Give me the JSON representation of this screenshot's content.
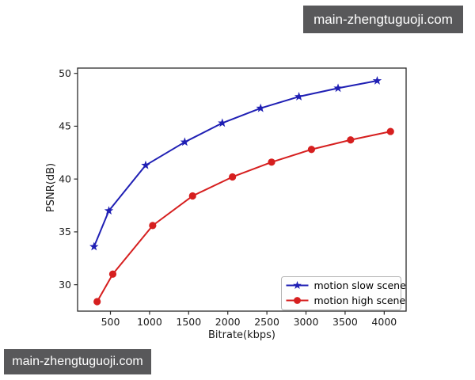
{
  "watermarks": {
    "top_right": "main-zhengtuguoji.com",
    "bottom_left": "main-zhengtuguoji.com"
  },
  "colors": {
    "watermark_bg": "#58585a",
    "watermark_text": "#ffffff",
    "axis": "#2b2b2b",
    "tick_text": "#1a1a1a",
    "legend_border": "#b4b4b4",
    "legend_bg": "#fefefe"
  },
  "chart_data": {
    "type": "line",
    "title": "",
    "xlabel": "Bitrate(kbps)",
    "ylabel": "PSNR(dB)",
    "xlim": [
      80,
      4280
    ],
    "ylim": [
      27.5,
      50.5
    ],
    "xticks": [
      500,
      1000,
      1500,
      2000,
      2500,
      3000,
      3500,
      4000
    ],
    "yticks": [
      30,
      35,
      40,
      45,
      50
    ],
    "grid": false,
    "legend_position": "lower right",
    "series": [
      {
        "name": "motion slow scene",
        "color": "#1f1fb4",
        "marker": "star",
        "x": [
          290,
          480,
          950,
          1450,
          1930,
          2420,
          2910,
          3410,
          3910
        ],
        "y": [
          33.6,
          37.0,
          41.3,
          43.5,
          45.3,
          46.7,
          47.8,
          48.6,
          49.3
        ]
      },
      {
        "name": "motion high scene",
        "color": "#d61f1f",
        "marker": "circle",
        "x": [
          330,
          530,
          1040,
          1550,
          2060,
          2560,
          3070,
          3570,
          4080
        ],
        "y": [
          28.4,
          31.0,
          35.6,
          38.4,
          40.2,
          41.6,
          42.8,
          43.7,
          44.5
        ]
      }
    ]
  }
}
